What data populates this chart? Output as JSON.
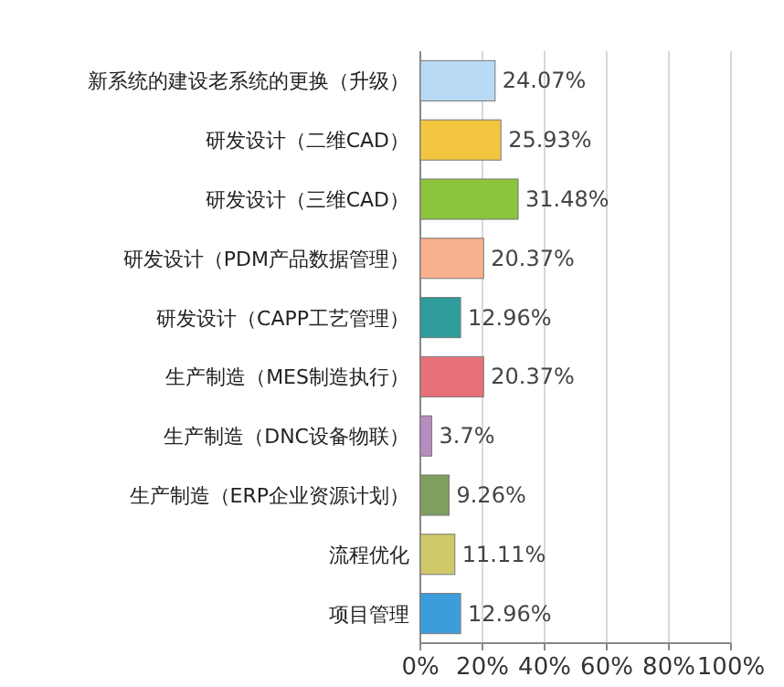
{
  "chart_data": {
    "type": "bar",
    "orientation": "horizontal",
    "categories": [
      "新系统的建设老系统的更换（升级）",
      "研发设计（二维CAD）",
      "研发设计（三维CAD）",
      "研发设计（PDM产品数据管理）",
      "研发设计（CAPP工艺管理）",
      "生产制造（MES制造执行）",
      "生产制造（DNC设备物联）",
      "生产制造（ERP企业资源计划）",
      "流程优化",
      "项目管理"
    ],
    "values": [
      24.07,
      25.93,
      31.48,
      20.37,
      12.96,
      20.37,
      3.7,
      9.26,
      11.11,
      12.96
    ],
    "value_labels": [
      "24.07%",
      "25.93%",
      "31.48%",
      "20.37%",
      "12.96%",
      "20.37%",
      "3.7%",
      "9.26%",
      "11.11%",
      "12.96%"
    ],
    "colors": [
      "#b8daf4",
      "#f3c640",
      "#8cc43c",
      "#f9b08c",
      "#2f9c9c",
      "#e8707a",
      "#b88cc0",
      "#7f9f5f",
      "#cfc868",
      "#3d9ddc"
    ],
    "xlim": [
      0,
      100
    ],
    "xticks": [
      {
        "value": 0,
        "label": "0%"
      },
      {
        "value": 20,
        "label": "20%"
      },
      {
        "value": 40,
        "label": "40%"
      },
      {
        "value": 60,
        "label": "60%"
      },
      {
        "value": 80,
        "label": "80%"
      },
      {
        "value": 100,
        "label": "100%"
      }
    ],
    "grid": "x"
  }
}
